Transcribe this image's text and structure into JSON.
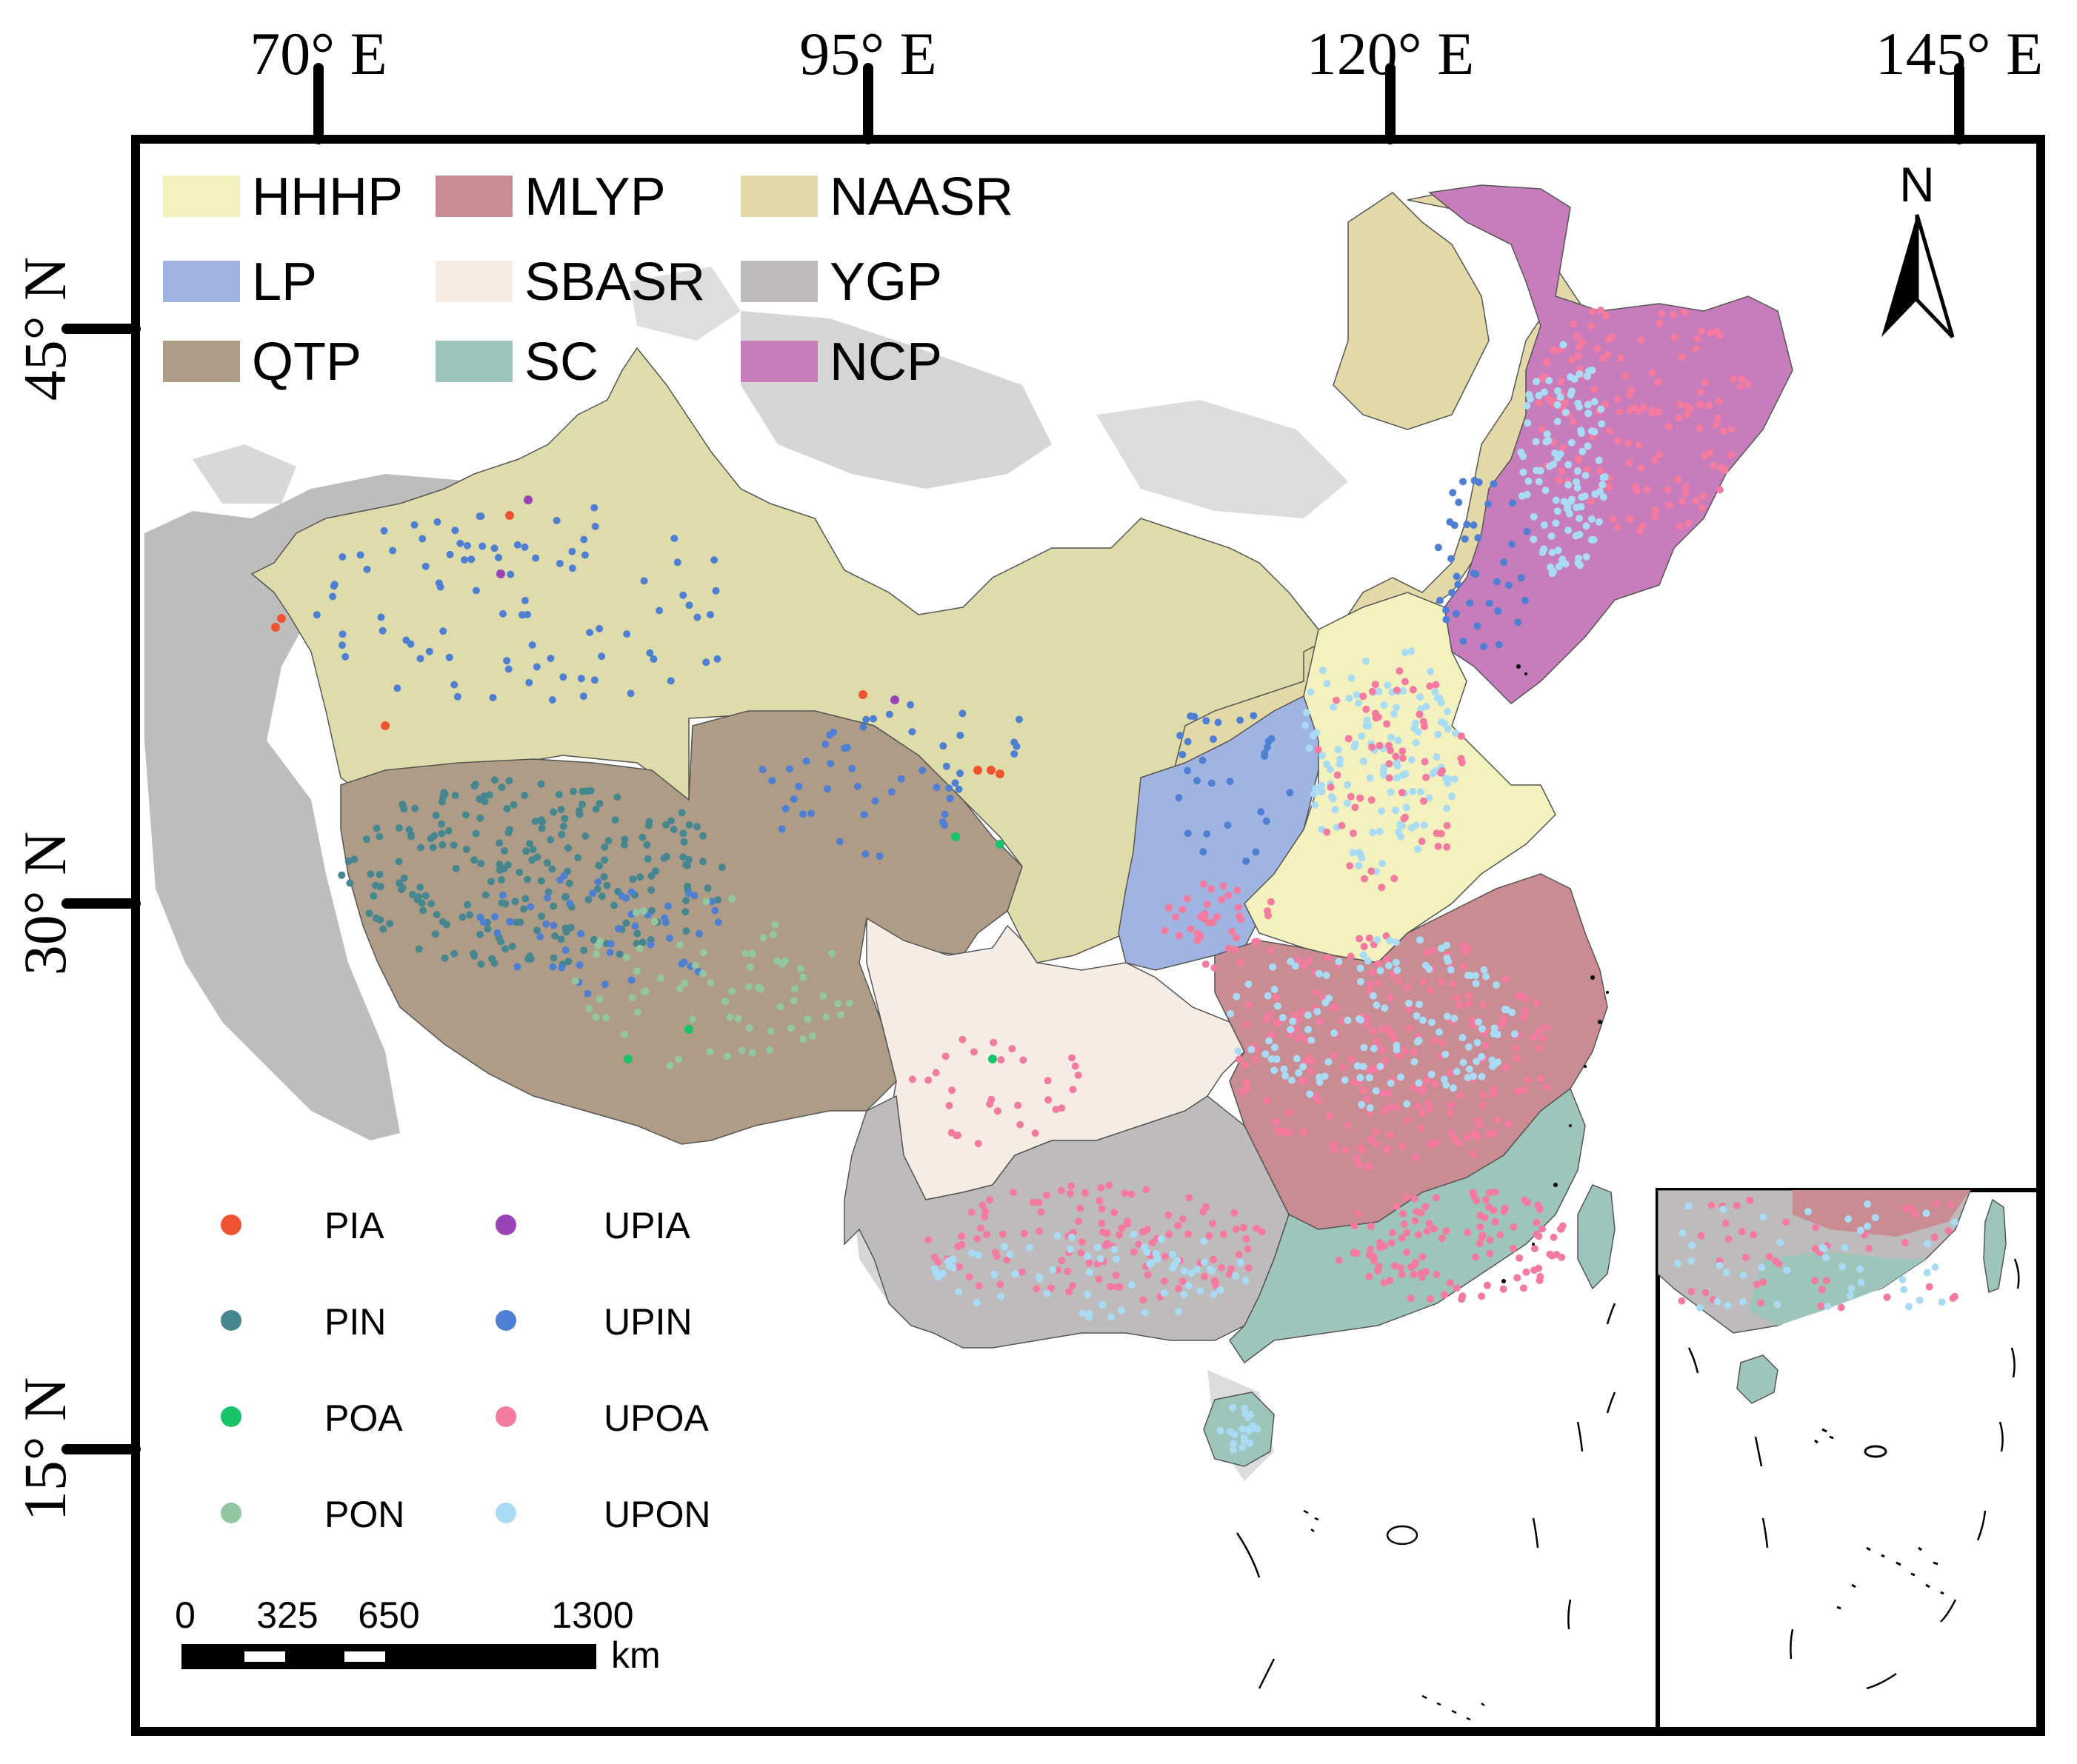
{
  "graticule": {
    "longitudes": [
      "70° E",
      "95° E",
      "120° E",
      "145° E"
    ],
    "latitudes": [
      "45° N",
      "30° N",
      "15° N"
    ]
  },
  "region_legend": [
    {
      "code": "HHHP",
      "color": "#f3f1bd"
    },
    {
      "code": "MLYP",
      "color": "#c88c92"
    },
    {
      "code": "NAASR",
      "color": "#e2d8a8"
    },
    {
      "code": "LP",
      "color": "#9fb4e0"
    },
    {
      "code": "SBASR",
      "color": "#f6ece6"
    },
    {
      "code": "YGP",
      "color": "#bdbbbb"
    },
    {
      "code": "QTP",
      "color": "#ae9c86"
    },
    {
      "code": "SC",
      "color": "#9ec5bc"
    },
    {
      "code": "NCP",
      "color": "#c77cbb"
    }
  ],
  "point_legend": [
    {
      "code": "PIA",
      "color": "#f0532f"
    },
    {
      "code": "UPIA",
      "color": "#9a43b8"
    },
    {
      "code": "PIN",
      "color": "#46878f"
    },
    {
      "code": "UPIN",
      "color": "#4f7fd3"
    },
    {
      "code": "POA",
      "color": "#18c46a"
    },
    {
      "code": "UPOA",
      "color": "#f47aa0"
    },
    {
      "code": "PON",
      "color": "#93c7a2"
    },
    {
      "code": "UPON",
      "color": "#a9dcf4"
    }
  ],
  "scale_bar": {
    "ticks": [
      "0",
      "325",
      "650",
      "1300"
    ],
    "unit": "km"
  },
  "north_arrow": {
    "label": "N"
  }
}
